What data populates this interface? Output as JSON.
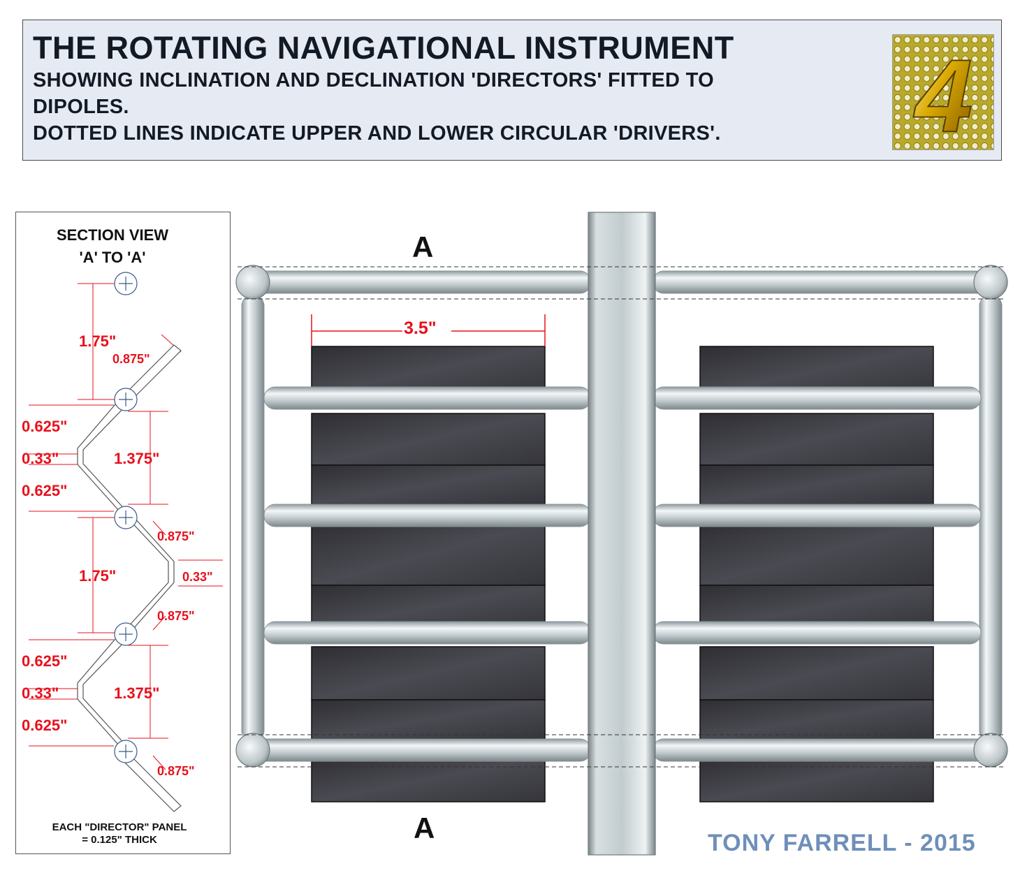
{
  "header": {
    "title": "THE ROTATING NAVIGATIONAL INSTRUMENT",
    "line1": "SHOWING INCLINATION AND DECLINATION 'DIRECTORS' FITTED TO",
    "line2": "DIPOLES.",
    "line3": "DOTTED LINES INDICATE UPPER AND LOWER CIRCULAR 'DRIVERS'.",
    "badge_number": "4"
  },
  "section_view": {
    "title_line1": "SECTION VIEW",
    "title_line2": "'A' TO 'A'",
    "note_line1": "EACH \"DIRECTOR\" PANEL",
    "note_line2": "= 0.125\" THICK",
    "dimensions": [
      "1.75\"",
      "0.875\"",
      "0.625\"",
      "0.33\"",
      "1.375\"",
      "0.625\"",
      "0.875\"",
      "1.75\"",
      "0.33\"",
      "0.875\"",
      "0.625\"",
      "0.33\"",
      "1.375\"",
      "0.625\"",
      "0.875\""
    ]
  },
  "main": {
    "section_mark_top": "A",
    "section_mark_bottom": "A",
    "panel_width_label": "3.5\""
  },
  "author": "TONY FARRELL - 2015",
  "colors": {
    "dimension": "#e8101c",
    "author": "#6f8fb9",
    "header_bg": "#e6ebf3",
    "panel": "#3a3a3f",
    "tube": "#c9d3d6"
  }
}
